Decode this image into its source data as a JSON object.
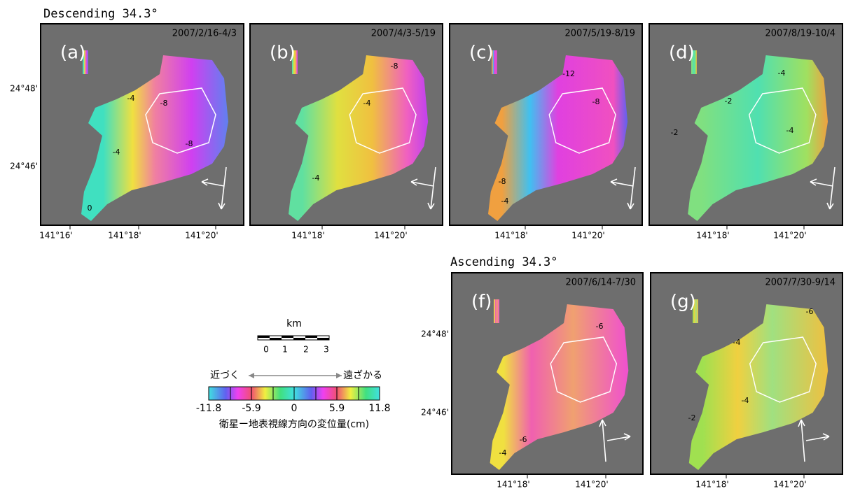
{
  "header": {
    "descending_title": "Descending 34.3°",
    "ascending_title": "Ascending 34.3°"
  },
  "panels": [
    {
      "label": "(a)",
      "period": "2007/2/16-4/3",
      "lat_labels": [
        "24°48'",
        "24°46'"
      ],
      "lon_labels": [
        "141°16'",
        "141°18'",
        "141°20'"
      ],
      "contour_labels": [
        "-4",
        "-8",
        "-4",
        "-8",
        "0"
      ]
    },
    {
      "label": "(b)",
      "period": "2007/4/3-5/19",
      "lon_labels": [
        "141°18'",
        "141°20'"
      ],
      "contour_labels": [
        "-8",
        "-4",
        "-4"
      ]
    },
    {
      "label": "(c)",
      "period": "2007/5/19-8/19",
      "lon_labels": [
        "141°18'",
        "141°20'"
      ],
      "contour_labels": [
        "-12",
        "-8",
        "-8",
        "-4"
      ]
    },
    {
      "label": "(d)",
      "period": "2007/8/19-10/4",
      "lon_labels": [
        "141°18'",
        "141°20'"
      ],
      "contour_labels": [
        "-4",
        "-2",
        "-2",
        "-4"
      ]
    },
    {
      "label": "(f)",
      "period": "2007/6/14-7/30",
      "lat_labels": [
        "24°48'",
        "24°46'"
      ],
      "lon_labels": [
        "141°18'",
        "141°20'"
      ],
      "contour_labels": [
        "-6",
        "-6",
        "-4"
      ]
    },
    {
      "label": "(g)",
      "period": "2007/7/30-9/14",
      "lon_labels": [
        "141°18'",
        "141°20'"
      ],
      "contour_labels": [
        "-6",
        "-4",
        "-4",
        "-2"
      ]
    }
  ],
  "scale_bar": {
    "unit": "km",
    "labels": [
      "0",
      "1",
      "2",
      "3"
    ]
  },
  "legend": {
    "approach": "近づく",
    "recede": "遠ざかる",
    "tick_labels": [
      "-11.8",
      "-5.9",
      "0",
      "5.9",
      "11.8"
    ],
    "caption": "衛星ー地表視線方向の変位量(cm)"
  }
}
